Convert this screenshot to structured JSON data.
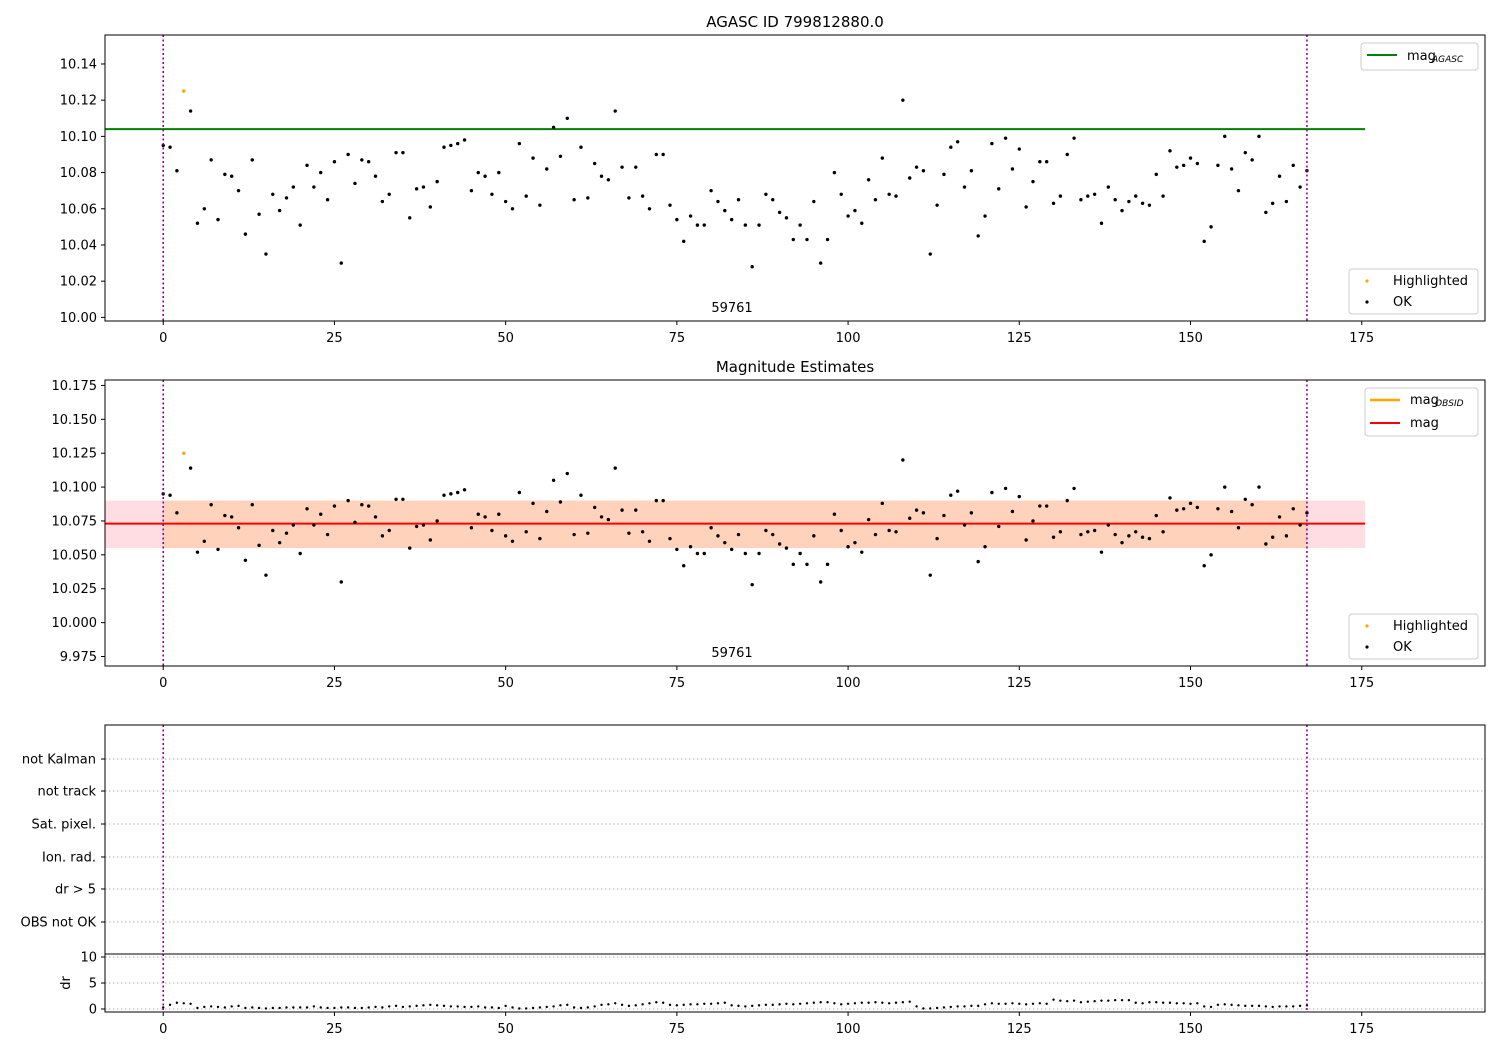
{
  "chart_data": [
    {
      "type": "scatter",
      "title": "AGASC ID 799812880.0",
      "xlim": [
        -8.5,
        193
      ],
      "ylim": [
        9.998,
        10.156
      ],
      "xticks": [
        "0",
        "25",
        "50",
        "75",
        "100",
        "125",
        "150",
        "175"
      ],
      "yticks": [
        "10.00",
        "10.02",
        "10.04",
        "10.06",
        "10.08",
        "10.10",
        "10.12",
        "10.14"
      ],
      "grid": false,
      "annotation": "59761",
      "vlines": [
        0,
        167
      ],
      "hline": {
        "name": "mag_AGASC",
        "value": 10.104,
        "color": "#008000"
      },
      "highlighted": {
        "name": "Highlighted",
        "x": [
          3
        ],
        "y": [
          10.125
        ],
        "color": "#ffa500"
      },
      "ok_name": "OK",
      "legend_upper": [
        "mag",
        "AGASC"
      ],
      "legend_lower": [
        "Highlighted",
        "OK"
      ],
      "legend_placement": "upper-right and lower-right"
    },
    {
      "type": "scatter",
      "title": "Magnitude Estimates",
      "xlim": [
        -8.5,
        193
      ],
      "ylim": [
        9.968,
        10.179
      ],
      "xticks": [
        "0",
        "25",
        "50",
        "75",
        "100",
        "125",
        "150",
        "175"
      ],
      "yticks": [
        "9.975",
        "10.000",
        "10.025",
        "10.050",
        "10.075",
        "10.100",
        "10.125",
        "10.150",
        "10.175"
      ],
      "grid": false,
      "annotation": "59761",
      "vlines": [
        0,
        167
      ],
      "mag": {
        "name": "mag",
        "value": 10.073,
        "lo": 10.055,
        "hi": 10.09,
        "color": "#ff0000"
      },
      "mag_obsid_color": "#ffa500",
      "legend_upper": [
        "mag",
        "OBSID",
        "mag"
      ],
      "legend_lower": [
        "Highlighted",
        "OK"
      ]
    },
    {
      "type": "scatter",
      "flags": [
        "not Kalman",
        "not track",
        "Sat. pixel.",
        "Ion. rad.",
        "dr > 5",
        "OBS not OK"
      ],
      "ylabel": "dr",
      "yticks": [
        "0",
        "5",
        "10"
      ],
      "ylim": [
        0,
        10
      ],
      "xticks": [
        "0",
        "25",
        "50",
        "75",
        "100",
        "125",
        "150",
        "175"
      ],
      "vlines": [
        0,
        167
      ],
      "dr": [
        0.3,
        0.8,
        1.2,
        1.1,
        1.0,
        0.2,
        0.4,
        0.5,
        0.4,
        0.3,
        0.5,
        0.6,
        0.2,
        0.3,
        0.2,
        0.1,
        0.2,
        0.2,
        0.3,
        0.3,
        0.3,
        0.3,
        0.5,
        0.3,
        0.2,
        0.2,
        0.3,
        0.3,
        0.2,
        0.2,
        0.3,
        0.4,
        0.3,
        0.5,
        0.6,
        0.4,
        0.5,
        0.6,
        0.7,
        0.8,
        0.7,
        0.6,
        0.5,
        0.5,
        0.4,
        0.4,
        0.5,
        0.3,
        0.3,
        0.2,
        0.6,
        0.3,
        0.1,
        0.1,
        0.2,
        0.3,
        0.4,
        0.5,
        0.7,
        0.8,
        0.3,
        0.2,
        0.3,
        0.5,
        0.8,
        0.9,
        1.1,
        0.8,
        0.6,
        0.7,
        0.9,
        1.1,
        1.3,
        1.2,
        0.8,
        0.7,
        0.8,
        0.9,
        0.9,
        1.0,
        1.0,
        1.1,
        1.2,
        0.7,
        0.6,
        0.5,
        0.6,
        0.7,
        0.8,
        0.8,
        0.9,
        1.0,
        0.9,
        1.0,
        1.1,
        1.2,
        1.3,
        1.3,
        1.1,
        0.9,
        1.0,
        1.1,
        1.2,
        1.2,
        1.3,
        1.2,
        1.1,
        1.2,
        1.3,
        1.4,
        0.5,
        0.1,
        0.1,
        0.2,
        0.3,
        0.4,
        0.5,
        0.5,
        0.6,
        0.6,
        0.9,
        1.1,
        1.0,
        1.0,
        1.1,
        1.0,
        0.9,
        1.0,
        1.1,
        1.0,
        1.8,
        1.6,
        1.5,
        1.6,
        1.3,
        1.4,
        1.5,
        1.6,
        1.6,
        1.7,
        1.7,
        1.7,
        1.2,
        1.1,
        1.3,
        1.3,
        1.2,
        1.2,
        1.1,
        1.1,
        1.0,
        1.1,
        0.5,
        0.4,
        0.8,
        0.9,
        0.8,
        0.7,
        0.6,
        0.6,
        0.6,
        0.5,
        0.4,
        0.5,
        0.5,
        0.5,
        0.6,
        0.7
      ]
    }
  ],
  "mag_values": [
    10.095,
    10.094,
    10.081,
    10.125,
    10.114,
    10.052,
    10.06,
    10.087,
    10.054,
    10.079,
    10.078,
    10.07,
    10.046,
    10.087,
    10.057,
    10.035,
    10.068,
    10.059,
    10.066,
    10.072,
    10.051,
    10.084,
    10.072,
    10.08,
    10.065,
    10.086,
    10.03,
    10.09,
    10.074,
    10.087,
    10.086,
    10.078,
    10.064,
    10.068,
    10.091,
    10.091,
    10.055,
    10.071,
    10.072,
    10.061,
    10.075,
    10.094,
    10.095,
    10.096,
    10.098,
    10.07,
    10.08,
    10.078,
    10.068,
    10.08,
    10.064,
    10.06,
    10.096,
    10.067,
    10.088,
    10.062,
    10.082,
    10.105,
    10.089,
    10.11,
    10.065,
    10.094,
    10.066,
    10.085,
    10.078,
    10.076,
    10.114,
    10.083,
    10.066,
    10.083,
    10.067,
    10.06,
    10.09,
    10.09,
    10.062,
    10.054,
    10.042,
    10.056,
    10.051,
    10.051,
    10.07,
    10.064,
    10.059,
    10.054,
    10.065,
    10.051,
    10.028,
    10.051,
    10.068,
    10.065,
    10.058,
    10.055,
    10.043,
    10.051,
    10.043,
    10.064,
    10.03,
    10.043,
    10.08,
    10.068,
    10.056,
    10.059,
    10.052,
    10.076,
    10.065,
    10.088,
    10.068,
    10.067,
    10.12,
    10.077,
    10.083,
    10.081,
    10.035,
    10.062,
    10.079,
    10.094,
    10.097,
    10.072,
    10.081,
    10.045,
    10.056,
    10.096,
    10.071,
    10.099,
    10.082,
    10.093,
    10.061,
    10.075,
    10.086,
    10.086,
    10.063,
    10.067,
    10.09,
    10.099,
    10.065,
    10.067,
    10.068,
    10.052,
    10.072,
    10.065,
    10.059,
    10.064,
    10.067,
    10.063,
    10.062,
    10.079,
    10.067,
    10.092,
    10.083,
    10.084,
    10.088,
    10.085,
    10.042,
    10.05,
    10.084,
    10.1,
    10.082,
    10.07,
    10.091,
    10.087,
    10.1,
    10.058,
    10.063,
    10.078,
    10.064,
    10.084,
    10.072,
    10.081
  ]
}
